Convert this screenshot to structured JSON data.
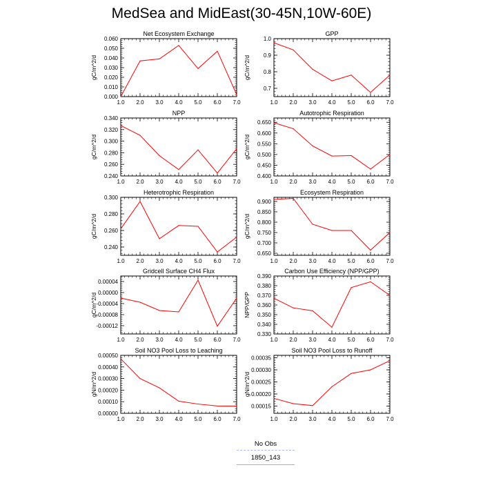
{
  "title": "MedSea and MidEast(30-45N,10W-60E)",
  "legend": {
    "entries": [
      {
        "label": "No Obs",
        "color": "#aab4ff",
        "dash": "dashed"
      },
      {
        "label": "1850_143",
        "color": "#ff8c8c",
        "dash": "solid"
      }
    ]
  },
  "colors": {
    "series": "#ff0000"
  },
  "chart_data": [
    {
      "type": "line",
      "title": "Net Ecosystem Exchange",
      "ylabel": "gC/m^2/d",
      "x": [
        1,
        2,
        3,
        4,
        5,
        6,
        7
      ],
      "xlim": [
        1,
        7
      ],
      "xticks": [
        "1.0",
        "2.0",
        "3.0",
        "4.0",
        "5.0",
        "6.0",
        "7.0"
      ],
      "ylim": [
        0,
        0.06
      ],
      "yticks": [
        0,
        0.01,
        0.02,
        0.03,
        0.04,
        0.05,
        0.06
      ],
      "yticklabels": [
        "0.000",
        "0.010",
        "0.020",
        "0.030",
        "0.040",
        "0.050",
        "0.060"
      ],
      "series": [
        {
          "values": [
            0.0,
            0.037,
            0.039,
            0.053,
            0.029,
            0.047,
            0.002
          ]
        }
      ]
    },
    {
      "type": "line",
      "title": "GPP",
      "ylabel": "gC/m^2/d",
      "x": [
        1,
        2,
        3,
        4,
        5,
        6,
        7
      ],
      "xlim": [
        1,
        7
      ],
      "xticks": [
        "1.0",
        "2.0",
        "3.0",
        "4.0",
        "5.0",
        "6.0",
        "7.0"
      ],
      "ylim": [
        0.65,
        1.0
      ],
      "yticks": [
        0.7,
        0.8,
        0.9,
        1.0
      ],
      "yticklabels": [
        "0.7",
        "0.8",
        "0.9",
        "1.0"
      ],
      "series": [
        {
          "values": [
            0.975,
            0.932,
            0.815,
            0.745,
            0.78,
            0.675,
            0.78
          ]
        }
      ]
    },
    {
      "type": "line",
      "title": "NPP",
      "ylabel": "gC/m^2/d",
      "x": [
        1,
        2,
        3,
        4,
        5,
        6,
        7
      ],
      "xlim": [
        1,
        7
      ],
      "xticks": [
        "1.0",
        "2.0",
        "3.0",
        "4.0",
        "5.0",
        "6.0",
        "7.0"
      ],
      "ylim": [
        0.24,
        0.34
      ],
      "yticks": [
        0.24,
        0.26,
        0.28,
        0.3,
        0.32,
        0.34
      ],
      "yticklabels": [
        "0.240",
        "0.260",
        "0.280",
        "0.300",
        "0.320",
        "0.340"
      ],
      "series": [
        {
          "values": [
            0.327,
            0.31,
            0.275,
            0.251,
            0.285,
            0.245,
            0.287
          ]
        }
      ]
    },
    {
      "type": "line",
      "title": "Autotrophic Respiration",
      "ylabel": "gC/m^2/d",
      "x": [
        1,
        2,
        3,
        4,
        5,
        6,
        7
      ],
      "xlim": [
        1,
        7
      ],
      "xticks": [
        "1.0",
        "2.0",
        "3.0",
        "4.0",
        "5.0",
        "6.0",
        "7.0"
      ],
      "ylim": [
        0.4,
        0.67
      ],
      "yticks": [
        0.4,
        0.45,
        0.5,
        0.55,
        0.6,
        0.65
      ],
      "yticklabels": [
        "0.400",
        "0.450",
        "0.500",
        "0.550",
        "0.600",
        "0.650"
      ],
      "series": [
        {
          "values": [
            0.648,
            0.62,
            0.54,
            0.493,
            0.495,
            0.432,
            0.5
          ]
        }
      ]
    },
    {
      "type": "line",
      "title": "Heterotrophic Respiration",
      "ylabel": "gC/m^2/d",
      "x": [
        1,
        2,
        3,
        4,
        5,
        6,
        7
      ],
      "xlim": [
        1,
        7
      ],
      "xticks": [
        "1.0",
        "2.0",
        "3.0",
        "4.0",
        "5.0",
        "6.0",
        "7.0"
      ],
      "ylim": [
        0.23,
        0.3
      ],
      "yticks": [
        0.24,
        0.26,
        0.28,
        0.3
      ],
      "yticklabels": [
        "0.240",
        "0.260",
        "0.280",
        "0.300"
      ],
      "series": [
        {
          "values": [
            0.262,
            0.295,
            0.25,
            0.266,
            0.265,
            0.234,
            0.252
          ]
        }
      ]
    },
    {
      "type": "line",
      "title": "Ecosystem Respiration",
      "ylabel": "gC/m^2/d",
      "x": [
        1,
        2,
        3,
        4,
        5,
        6,
        7
      ],
      "xlim": [
        1,
        7
      ],
      "xticks": [
        "1.0",
        "2.0",
        "3.0",
        "4.0",
        "5.0",
        "6.0",
        "7.0"
      ],
      "ylim": [
        0.64,
        0.92
      ],
      "yticks": [
        0.65,
        0.7,
        0.75,
        0.8,
        0.85,
        0.9
      ],
      "yticklabels": [
        "0.650",
        "0.700",
        "0.750",
        "0.800",
        "0.850",
        "0.900"
      ],
      "series": [
        {
          "values": [
            0.91,
            0.915,
            0.79,
            0.76,
            0.76,
            0.665,
            0.75
          ]
        }
      ]
    },
    {
      "type": "line",
      "title": "Gridcell Surface CH4 Flux",
      "ylabel": "gC/m^2/d",
      "x": [
        1,
        2,
        3,
        4,
        5,
        6,
        7
      ],
      "xlim": [
        1,
        7
      ],
      "xticks": [
        "1.0",
        "2.0",
        "3.0",
        "4.0",
        "5.0",
        "6.0",
        "7.0"
      ],
      "ylim": [
        -0.00015,
        6e-05
      ],
      "yticks": [
        -0.00012,
        -8e-05,
        -4e-05,
        0.0,
        4e-05
      ],
      "yticklabels": [
        "-0.00012",
        "-0.00008",
        "-0.00004",
        "0.00000",
        "0.00004"
      ],
      "series": [
        {
          "values": [
            -2e-05,
            -3.5e-05,
            -6.5e-05,
            -7e-05,
            4.5e-05,
            -0.000122,
            -2e-05
          ]
        }
      ]
    },
    {
      "type": "line",
      "title": "Carbon Use Efficiency (NPP/GPP)",
      "ylabel": "NPP/GPP",
      "x": [
        1,
        2,
        3,
        4,
        5,
        6,
        7
      ],
      "xlim": [
        1,
        7
      ],
      "xticks": [
        "1.0",
        "2.0",
        "3.0",
        "4.0",
        "5.0",
        "6.0",
        "7.0"
      ],
      "ylim": [
        0.33,
        0.39
      ],
      "yticks": [
        0.33,
        0.34,
        0.35,
        0.36,
        0.37,
        0.38,
        0.39
      ],
      "yticklabels": [
        "0.330",
        "0.340",
        "0.350",
        "0.360",
        "0.370",
        "0.380",
        "0.390"
      ],
      "series": [
        {
          "values": [
            0.367,
            0.357,
            0.354,
            0.337,
            0.378,
            0.384,
            0.37
          ]
        }
      ]
    },
    {
      "type": "line",
      "title": "Soil NO3 Pool Loss to Leaching",
      "ylabel": "gN/m^2/d",
      "x": [
        1,
        2,
        3,
        4,
        5,
        6,
        7
      ],
      "xlim": [
        1,
        7
      ],
      "xticks": [
        "1.0",
        "2.0",
        "3.0",
        "4.0",
        "5.0",
        "6.0",
        "7.0"
      ],
      "ylim": [
        0,
        0.0005
      ],
      "yticks": [
        0,
        0.0001,
        0.0002,
        0.0003,
        0.0004,
        0.0005
      ],
      "yticklabels": [
        "0.00000",
        "0.00010",
        "0.00020",
        "0.00030",
        "0.00040",
        "0.00050"
      ],
      "series": [
        {
          "values": [
            0.00047,
            0.0003,
            0.00022,
            0.000105,
            8e-05,
            6.3e-05,
            6.2e-05
          ]
        }
      ]
    },
    {
      "type": "line",
      "title": "Soil NO3 Pool Loss to Runoff",
      "ylabel": "gN/m^2/d",
      "x": [
        1,
        2,
        3,
        4,
        5,
        6,
        7
      ],
      "xlim": [
        1,
        7
      ],
      "xticks": [
        "1.0",
        "2.0",
        "3.0",
        "4.0",
        "5.0",
        "6.0",
        "7.0"
      ],
      "ylim": [
        0.00012,
        0.00036
      ],
      "yticks": [
        0.00015,
        0.0002,
        0.00025,
        0.0003,
        0.00035
      ],
      "yticklabels": [
        "0.00015",
        "0.00020",
        "0.00025",
        "0.00030",
        "0.00035"
      ],
      "series": [
        {
          "values": [
            0.000182,
            0.00016,
            0.000152,
            0.00023,
            0.000285,
            0.0003,
            0.000338
          ]
        }
      ]
    }
  ]
}
